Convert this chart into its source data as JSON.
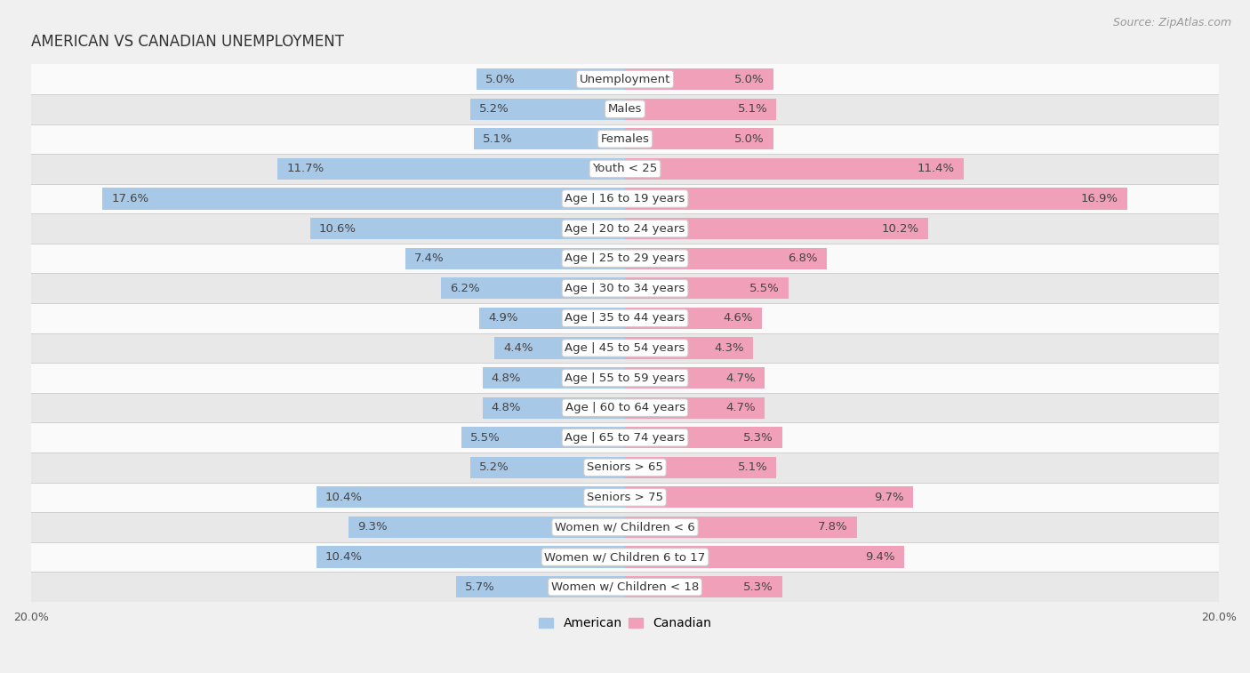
{
  "title": "AMERICAN VS CANADIAN UNEMPLOYMENT",
  "source": "Source: ZipAtlas.com",
  "categories": [
    "Unemployment",
    "Males",
    "Females",
    "Youth < 25",
    "Age | 16 to 19 years",
    "Age | 20 to 24 years",
    "Age | 25 to 29 years",
    "Age | 30 to 34 years",
    "Age | 35 to 44 years",
    "Age | 45 to 54 years",
    "Age | 55 to 59 years",
    "Age | 60 to 64 years",
    "Age | 65 to 74 years",
    "Seniors > 65",
    "Seniors > 75",
    "Women w/ Children < 6",
    "Women w/ Children 6 to 17",
    "Women w/ Children < 18"
  ],
  "american": [
    5.0,
    5.2,
    5.1,
    11.7,
    17.6,
    10.6,
    7.4,
    6.2,
    4.9,
    4.4,
    4.8,
    4.8,
    5.5,
    5.2,
    10.4,
    9.3,
    10.4,
    5.7
  ],
  "canadian": [
    5.0,
    5.1,
    5.0,
    11.4,
    16.9,
    10.2,
    6.8,
    5.5,
    4.6,
    4.3,
    4.7,
    4.7,
    5.3,
    5.1,
    9.7,
    7.8,
    9.4,
    5.3
  ],
  "american_color": "#a8c8e8",
  "canadian_color": "#f0a0b8",
  "highlight_american_color": "#7ab0d8",
  "highlight_canadian_color": "#e87898",
  "background_color": "#f0f0f0",
  "row_bg_light": "#fafafa",
  "row_bg_dark": "#e8e8e8",
  "row_separator_color": "#d0d0d0",
  "xlim": 20.0,
  "bar_height": 0.72,
  "value_fontsize": 9.5,
  "cat_fontsize": 9.5,
  "title_fontsize": 12,
  "source_fontsize": 9,
  "legend_fontsize": 10,
  "axis_fontsize": 9
}
